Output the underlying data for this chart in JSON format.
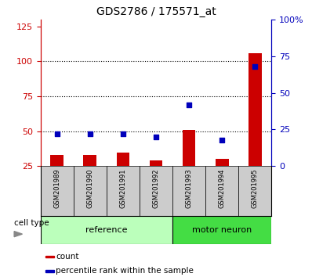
{
  "title": "GDS2786 / 175571_at",
  "samples": [
    "GSM201989",
    "GSM201990",
    "GSM201991",
    "GSM201992",
    "GSM201993",
    "GSM201994",
    "GSM201995"
  ],
  "counts": [
    33,
    33,
    35,
    29,
    51,
    30,
    106
  ],
  "percentiles": [
    22,
    22,
    22,
    20,
    42,
    18,
    68
  ],
  "groups": [
    {
      "label": "reference",
      "start": 0,
      "end": 4
    },
    {
      "label": "motor neuron",
      "start": 4,
      "end": 7
    }
  ],
  "left_ylim": [
    25,
    130
  ],
  "left_yticks": [
    25,
    50,
    75,
    100,
    125
  ],
  "right_ylim": [
    0,
    100
  ],
  "right_yticks": [
    0,
    25,
    50,
    75,
    100
  ],
  "right_yticklabels": [
    "0",
    "25",
    "50",
    "75",
    "100%"
  ],
  "left_axis_color": "#CC0000",
  "right_axis_color": "#0000BB",
  "bar_color": "#CC0000",
  "dot_color": "#0000BB",
  "group_ref_color": "#BBFFBB",
  "group_mn_color": "#44DD44",
  "sample_bg_color": "#CCCCCC",
  "cell_type_label": "cell type",
  "legend_count": "count",
  "legend_percentile": "percentile rank within the sample"
}
